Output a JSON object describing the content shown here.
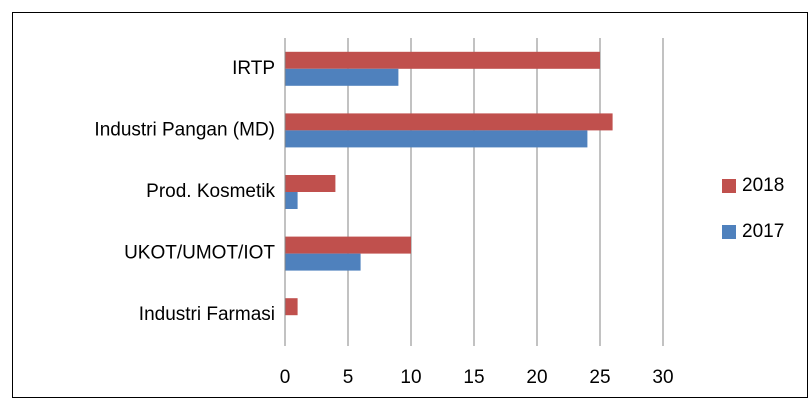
{
  "chart_data": {
    "type": "bar",
    "orientation": "horizontal",
    "categories": [
      "IRTP",
      "Industri Pangan (MD)",
      "Prod. Kosmetik",
      "UKOT/UMOT/IOT",
      "Industri Farmasi"
    ],
    "series": [
      {
        "name": "2018",
        "color": "#c0504d",
        "values": [
          25,
          26,
          4,
          10,
          1
        ]
      },
      {
        "name": "2017",
        "color": "#4f81bd",
        "values": [
          9,
          24,
          1,
          6,
          0
        ]
      }
    ],
    "xlim": [
      0,
      30
    ],
    "xticks": [
      0,
      5,
      10,
      15,
      20,
      25,
      30
    ],
    "grid": true,
    "legend": "right"
  }
}
